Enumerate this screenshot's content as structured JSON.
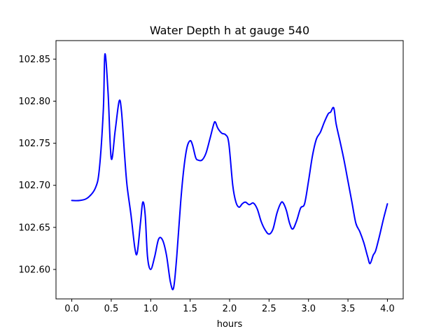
{
  "chart_data": {
    "type": "line",
    "title": "Water Depth h at gauge 540",
    "xlabel": "hours",
    "ylabel": "",
    "xlim": [
      -0.2,
      4.2
    ],
    "ylim": [
      102.565,
      102.872
    ],
    "xticks": [
      0.0,
      0.5,
      1.0,
      1.5,
      2.0,
      2.5,
      3.0,
      3.5,
      4.0
    ],
    "xtick_labels": [
      "0.0",
      "0.5",
      "1.0",
      "1.5",
      "2.0",
      "2.5",
      "3.0",
      "3.5",
      "4.0"
    ],
    "yticks": [
      102.6,
      102.65,
      102.7,
      102.75,
      102.8,
      102.85
    ],
    "ytick_labels": [
      "102.60",
      "102.65",
      "102.70",
      "102.75",
      "102.80",
      "102.85"
    ],
    "grid": false,
    "series": [
      {
        "color": "#0000ff",
        "x": [
          0.0,
          0.1,
          0.2,
          0.3,
          0.35,
          0.4,
          0.42,
          0.46,
          0.5,
          0.55,
          0.6,
          0.63,
          0.67,
          0.7,
          0.75,
          0.8,
          0.83,
          0.87,
          0.9,
          0.93,
          0.96,
          1.0,
          1.05,
          1.1,
          1.15,
          1.2,
          1.25,
          1.29,
          1.33,
          1.38,
          1.42,
          1.46,
          1.5,
          1.53,
          1.57,
          1.6,
          1.65,
          1.7,
          1.75,
          1.8,
          1.82,
          1.85,
          1.9,
          1.95,
          1.99,
          2.04,
          2.08,
          2.12,
          2.16,
          2.2,
          2.25,
          2.3,
          2.35,
          2.4,
          2.45,
          2.5,
          2.55,
          2.6,
          2.65,
          2.68,
          2.72,
          2.76,
          2.8,
          2.85,
          2.9,
          2.95,
          3.0,
          3.05,
          3.1,
          3.15,
          3.2,
          3.25,
          3.28,
          3.32,
          3.35,
          3.4,
          3.45,
          3.5,
          3.55,
          3.6,
          3.65,
          3.7,
          3.75,
          3.78,
          3.82,
          3.85,
          3.9,
          3.95,
          4.0
        ],
        "y": [
          102.682,
          102.682,
          102.685,
          102.697,
          102.72,
          102.79,
          102.856,
          102.81,
          102.732,
          102.765,
          102.8,
          102.788,
          102.735,
          102.7,
          102.665,
          102.625,
          102.62,
          102.655,
          102.68,
          102.665,
          102.615,
          102.6,
          102.615,
          102.636,
          102.635,
          102.617,
          102.585,
          102.578,
          102.615,
          102.68,
          102.72,
          102.745,
          102.753,
          102.748,
          102.733,
          102.73,
          102.73,
          102.738,
          102.755,
          102.773,
          102.775,
          102.768,
          102.762,
          102.76,
          102.75,
          102.7,
          102.68,
          102.674,
          102.678,
          102.68,
          102.677,
          102.679,
          102.672,
          102.657,
          102.647,
          102.642,
          102.648,
          102.667,
          102.679,
          102.679,
          102.67,
          102.655,
          102.648,
          102.658,
          102.673,
          102.678,
          102.705,
          102.735,
          102.755,
          102.763,
          102.775,
          102.785,
          102.787,
          102.792,
          102.773,
          102.752,
          102.73,
          102.705,
          102.68,
          102.655,
          102.645,
          102.632,
          102.615,
          102.607,
          102.617,
          102.622,
          102.64,
          102.66,
          102.678
        ]
      }
    ]
  }
}
